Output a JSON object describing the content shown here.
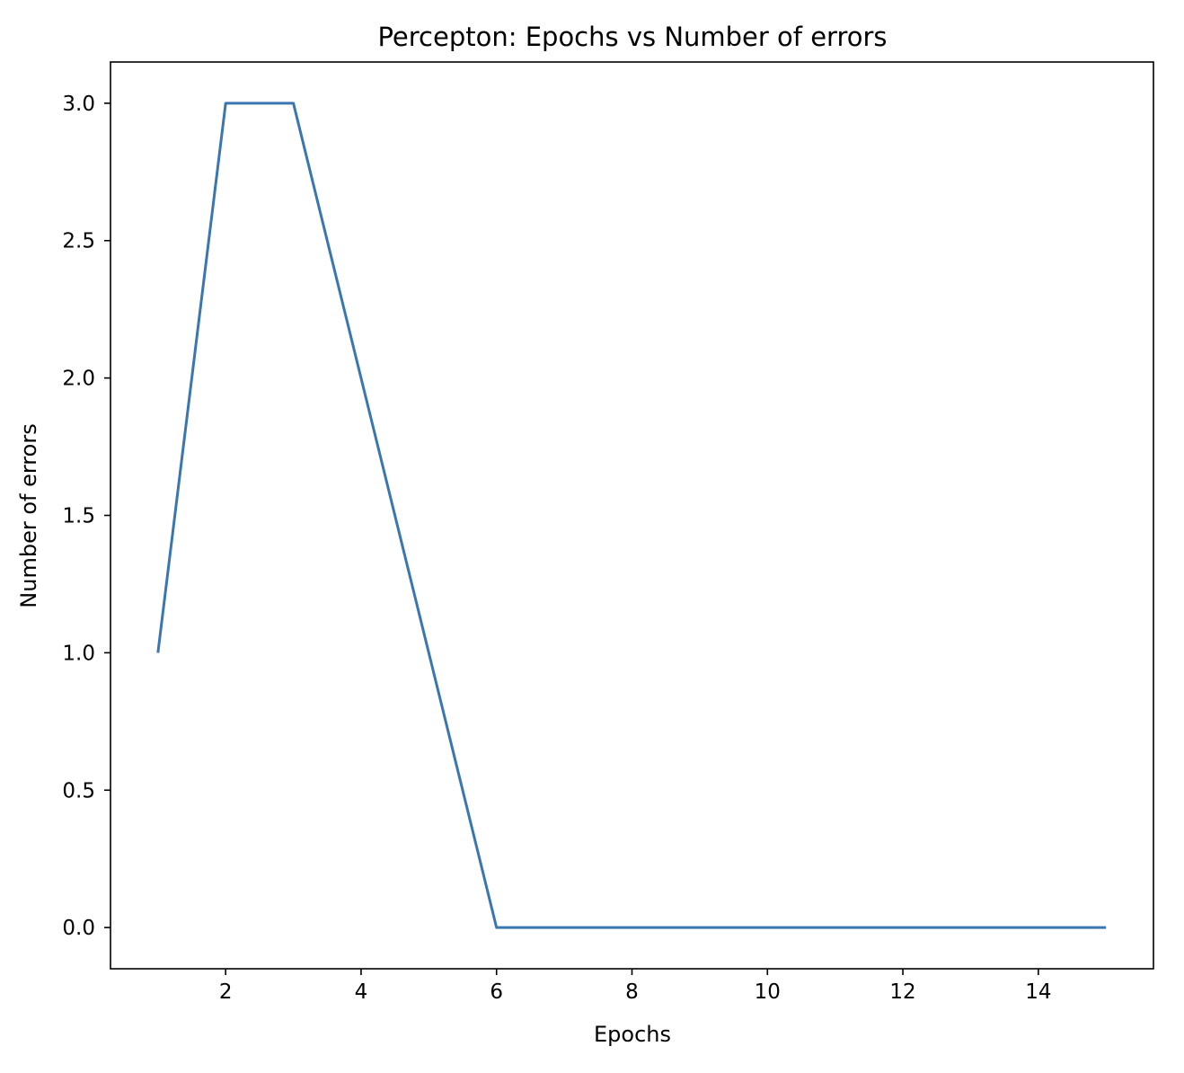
{
  "chart_data": {
    "type": "line",
    "title": "Percepton: Epochs vs Number of errors",
    "xlabel": "Epochs",
    "ylabel": "Number of errors",
    "x": [
      1,
      2,
      3,
      4,
      5,
      6,
      7,
      8,
      9,
      10,
      11,
      12,
      13,
      14,
      15
    ],
    "series": [
      {
        "values": [
          1,
          3,
          3,
          2,
          1,
          0,
          0,
          0,
          0,
          0,
          0,
          0,
          0,
          0,
          0
        ],
        "color": "#3a76af"
      }
    ],
    "xlim": [
      0.3,
      15.7
    ],
    "ylim": [
      -0.15,
      3.15
    ],
    "xticks": [
      2,
      4,
      6,
      8,
      10,
      12,
      14
    ],
    "xtick_labels": [
      "2",
      "4",
      "6",
      "8",
      "10",
      "12",
      "14"
    ],
    "yticks": [
      0.0,
      0.5,
      1.0,
      1.5,
      2.0,
      2.5,
      3.0
    ],
    "ytick_labels": [
      "0.0",
      "0.5",
      "1.0",
      "1.5",
      "2.0",
      "2.5",
      "3.0"
    ],
    "grid": false,
    "legend": "none"
  }
}
